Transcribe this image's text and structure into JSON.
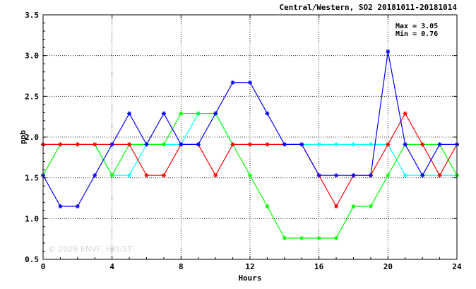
{
  "chart_data": {
    "type": "line",
    "title": "Central/Western, SO2 20181011-20181014",
    "xlabel": "Hours",
    "ylabel": "ppb",
    "xlim": [
      0,
      24
    ],
    "ylim": [
      0.5,
      3.5
    ],
    "x_ticks": [
      0,
      4,
      8,
      12,
      16,
      20,
      24
    ],
    "y_ticks": [
      0.5,
      1.0,
      1.5,
      2.0,
      2.5,
      3.0,
      3.5
    ],
    "y_tick_labels": [
      "0.5",
      "1.0",
      "1.5",
      "2.0",
      "2.5",
      "3.0",
      "3.5"
    ],
    "grid": true,
    "stats": {
      "max_label": "Max = 3.05",
      "min_label": "Min = 0.76"
    },
    "watermark": "© 2026 ENVF, HKUST",
    "x": [
      0,
      1,
      2,
      3,
      4,
      5,
      6,
      7,
      8,
      9,
      10,
      11,
      12,
      13,
      14,
      15,
      16,
      17,
      18,
      19,
      20,
      21,
      22,
      23,
      24
    ],
    "series": [
      {
        "color": "#00ffff",
        "values": [
          1.91,
          1.91,
          1.91,
          1.91,
          1.53,
          1.53,
          1.91,
          1.91,
          1.91,
          2.29,
          2.29,
          1.91,
          1.91,
          1.91,
          1.91,
          1.91,
          1.91,
          1.91,
          1.91,
          1.91,
          1.91,
          1.53,
          1.53,
          1.53,
          1.53
        ]
      },
      {
        "color": "#00ff00",
        "values": [
          1.53,
          1.91,
          1.91,
          1.91,
          1.53,
          1.91,
          1.91,
          1.91,
          2.29,
          2.29,
          2.29,
          1.91,
          1.53,
          1.15,
          0.76,
          0.76,
          0.76,
          0.76,
          1.15,
          1.15,
          1.53,
          1.91,
          1.91,
          1.91,
          1.53
        ]
      },
      {
        "color": "#ff0000",
        "values": [
          1.91,
          1.91,
          1.91,
          1.91,
          1.91,
          1.91,
          1.53,
          1.53,
          1.91,
          1.91,
          1.53,
          1.91,
          1.91,
          1.91,
          1.91,
          1.91,
          1.53,
          1.15,
          1.53,
          1.53,
          1.91,
          2.29,
          1.91,
          1.53,
          1.91
        ]
      },
      {
        "color": "#0000ff",
        "values": [
          1.53,
          1.15,
          1.15,
          1.53,
          1.91,
          2.29,
          1.91,
          2.29,
          1.91,
          1.91,
          2.29,
          2.67,
          2.67,
          2.29,
          1.91,
          1.91,
          1.53,
          1.53,
          1.53,
          1.53,
          3.05,
          1.91,
          1.53,
          1.91,
          1.91
        ]
      }
    ]
  }
}
